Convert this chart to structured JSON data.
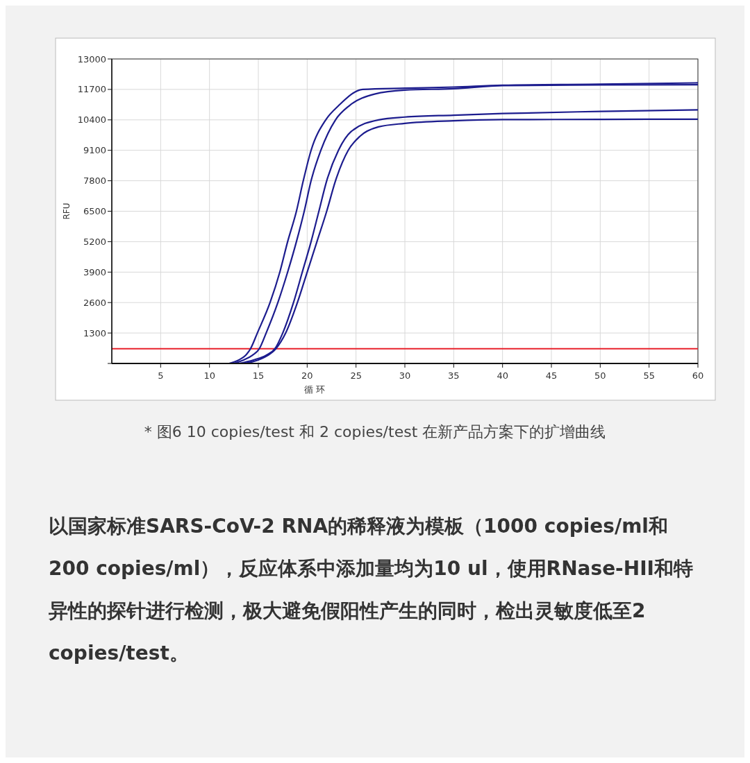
{
  "chart_data": {
    "type": "line",
    "xlabel": "循 环",
    "ylabel": "RFU",
    "xlim": [
      0,
      60
    ],
    "ylim": [
      0,
      13000
    ],
    "xticks": [
      5,
      10,
      15,
      20,
      25,
      30,
      35,
      40,
      45,
      50,
      55,
      60
    ],
    "yticks": [
      {
        "value": 0,
        "label": null
      },
      1300,
      2600,
      3900,
      5200,
      6500,
      7800,
      9100,
      10400,
      11700,
      13000
    ],
    "grid": true,
    "marker": "none",
    "line_style": "solid",
    "series": [
      {
        "color": "#1c1c8e",
        "x": [
          12,
          13,
          13.7,
          14.2,
          14.9,
          16.2,
          17.2,
          18,
          18.9,
          19.6,
          20.4,
          21.9,
          23.2,
          25.7,
          30,
          35,
          40,
          50,
          60
        ],
        "values": [
          0,
          150,
          350,
          630,
          1300,
          2600,
          3900,
          5200,
          6500,
          7800,
          9100,
          10400,
          11000,
          11700,
          11750,
          11800,
          11880,
          11920,
          11980
        ]
      },
      {
        "color": "#1c1c8e",
        "x": [
          12.5,
          13.5,
          14.4,
          15.1,
          15.8,
          17,
          18,
          18.9,
          19.7,
          20.4,
          21.4,
          22.9,
          24.3,
          26.9,
          30,
          35,
          40,
          50,
          60
        ],
        "values": [
          0,
          150,
          350,
          630,
          1300,
          2600,
          3900,
          5200,
          6500,
          7800,
          9100,
          10400,
          11000,
          11500,
          11670,
          11730,
          11860,
          11890,
          11900
        ]
      },
      {
        "color": "#1c1c8e",
        "x": [
          13,
          14.5,
          15.8,
          16.7,
          17.5,
          18.6,
          19.5,
          20.4,
          21.2,
          22,
          23.2,
          24.5,
          27.3,
          30,
          35,
          40,
          50,
          60
        ],
        "values": [
          0,
          150,
          350,
          630,
          1300,
          2600,
          3900,
          5200,
          6500,
          7800,
          9100,
          9900,
          10400,
          10520,
          10600,
          10670,
          10760,
          10830
        ]
      },
      {
        "color": "#1c1c8e",
        "x": [
          13.5,
          15,
          16,
          16.8,
          17.8,
          19,
          20,
          21,
          22,
          22.9,
          24.2,
          25.4,
          27.3,
          30,
          35,
          40,
          50,
          60
        ],
        "values": [
          0,
          150,
          350,
          630,
          1300,
          2600,
          3900,
          5200,
          6500,
          7800,
          9100,
          9700,
          10100,
          10250,
          10360,
          10410,
          10420,
          10430
        ]
      }
    ],
    "ref_lines": [
      {
        "axis": "y",
        "value": 630,
        "color": "#e8202a"
      }
    ],
    "annotations": [
      "* 图6 10 copies/test 和 2 copies/test 在新产品方案下的扩增曲线",
      "以国家标准SARS-CoV-2 RNA的稀释液为模板（1000 copies/ml和200 copies/ml），反应体系中添加量均为10 ul，使用RNase-HII和特异性的探针进行检测，极大避免假阳性产生的同时，检出灵敏度低至2 copies/test。"
    ]
  }
}
